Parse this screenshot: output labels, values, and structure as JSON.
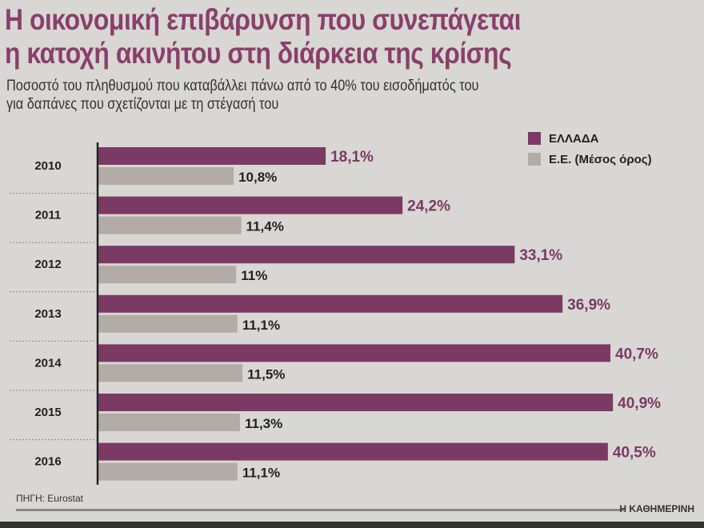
{
  "chart_data": {
    "type": "bar",
    "orientation": "horizontal",
    "title": "Η οικονομική επιβάρυνση που συνεπάγεται η κατοχή ακινήτου στη διάρκεια της κρίσης",
    "title_lines": [
      "Η οικονομική επιβάρυνση που συνεπάγεται",
      "η κατοχή ακινήτου στη διάρκεια της κρίσης"
    ],
    "subtitle_lines": [
      "Ποσοστό του πληθυσμού που καταβάλλει πάνω από το 40% του εισοδήματός του",
      "για δαπάνες που σχετίζονται με τη στέγασή του"
    ],
    "categories": [
      "2010",
      "2011",
      "2012",
      "2013",
      "2014",
      "2015",
      "2016"
    ],
    "series": [
      {
        "name": "ΕΛΛΑΔΑ",
        "color": "#7b3a63",
        "values": [
          18.1,
          24.2,
          33.1,
          36.9,
          40.7,
          40.9,
          40.5
        ],
        "labels": [
          "18,1%",
          "24,2%",
          "33,1%",
          "36,9%",
          "40,7%",
          "40,9%",
          "40,5%"
        ]
      },
      {
        "name": "Ε.Ε. (Μέσος όρος)",
        "color": "#b3aba6",
        "values": [
          10.8,
          11.4,
          11.0,
          11.1,
          11.5,
          11.3,
          11.1
        ],
        "labels": [
          "10,8%",
          "11,4%",
          "11%",
          "11,1%",
          "11,5%",
          "11,3%",
          "11,1%"
        ]
      }
    ],
    "xlim": [
      0,
      45
    ],
    "grid": false,
    "legend_position": "top-right",
    "source": "ΠΗΓΗ: Eurostat",
    "publisher": "Η ΚΑΘΗΜΕΡΙΝΗ"
  }
}
